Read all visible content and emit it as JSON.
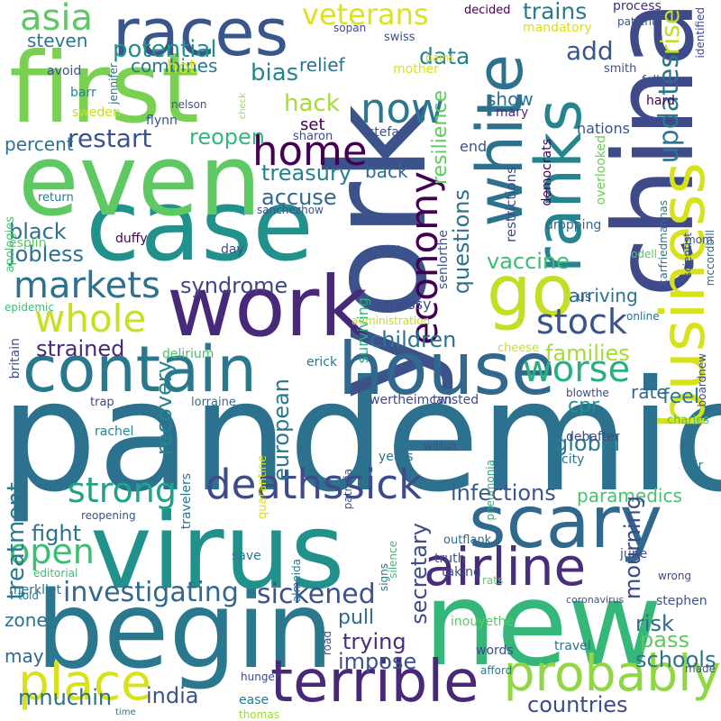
{
  "palette": {
    "dark_purple": "#440154",
    "indigo": "#3b528b",
    "slate_blue": "#31688e",
    "teal": "#21918c",
    "sea_green": "#2ca87f",
    "green": "#5ec962",
    "lime": "#a0da39",
    "yellow": "#d8e219"
  },
  "words": [
    {
      "text": "pandemic",
      "color": "#2c728e"
    },
    {
      "text": "york",
      "color": "#3b528b"
    },
    {
      "text": "china",
      "color": "#3e4a89"
    },
    {
      "text": "case",
      "color": "#21918c"
    },
    {
      "text": "even",
      "color": "#5ec962"
    },
    {
      "text": "first",
      "color": "#7ad151"
    },
    {
      "text": "new",
      "color": "#35b779"
    },
    {
      "text": "begin",
      "color": "#2a788e"
    },
    {
      "text": "virus",
      "color": "#21918c"
    },
    {
      "text": "work",
      "color": "#482878"
    },
    {
      "text": "house",
      "color": "#31688e"
    },
    {
      "text": "white",
      "color": "#2c728e"
    },
    {
      "text": "go",
      "color": "#c2df23"
    },
    {
      "text": "races",
      "color": "#39568c"
    },
    {
      "text": "business",
      "color": "#d8e219"
    },
    {
      "text": "ranks",
      "color": "#25858e"
    },
    {
      "text": "contain",
      "color": "#2a788e"
    },
    {
      "text": "scary",
      "color": "#31688e"
    },
    {
      "text": "airline",
      "color": "#472d7b"
    },
    {
      "text": "terrible",
      "color": "#482878"
    },
    {
      "text": "probably",
      "color": "#90d743"
    },
    {
      "text": "place",
      "color": "#d8e219"
    },
    {
      "text": "deathssick",
      "color": "#3e4a89"
    },
    {
      "text": "home",
      "color": "#440154"
    },
    {
      "text": "economy",
      "color": "#440154"
    },
    {
      "text": "now",
      "color": "#2a788e"
    },
    {
      "text": "worse",
      "color": "#2ab07f"
    },
    {
      "text": "whole",
      "color": "#c8e020"
    },
    {
      "text": "markets",
      "color": "#2c728e"
    },
    {
      "text": "strong",
      "color": "#20a386"
    },
    {
      "text": "investigating",
      "color": "#31688e"
    },
    {
      "text": "open",
      "color": "#3dbc74"
    },
    {
      "text": "sickened",
      "color": "#3b528b"
    },
    {
      "text": "stock",
      "color": "#3b528b"
    },
    {
      "text": "veterans",
      "color": "#dde318"
    },
    {
      "text": "asia",
      "color": "#5ec962"
    },
    {
      "text": "hack",
      "color": "#a5db36"
    },
    {
      "text": "data",
      "color": "#26828e"
    },
    {
      "text": "potential",
      "color": "#21918c"
    },
    {
      "text": "bias",
      "color": "#25858e"
    },
    {
      "text": "trains",
      "color": "#2a788e"
    },
    {
      "text": "add",
      "color": "#39568c"
    },
    {
      "text": "rise",
      "color": "#bddf26"
    },
    {
      "text": "updates",
      "color": "#2a788e"
    },
    {
      "text": "restart",
      "color": "#3b528b"
    },
    {
      "text": "reopen",
      "color": "#35b779"
    },
    {
      "text": "treasury",
      "color": "#26828e"
    },
    {
      "text": "accuse",
      "color": "#31688e"
    },
    {
      "text": "black",
      "color": "#2c728e"
    },
    {
      "text": "jobless",
      "color": "#2c728e"
    },
    {
      "text": "syndrome",
      "color": "#414487"
    },
    {
      "text": "vaccine",
      "color": "#3dbc74"
    },
    {
      "text": "questions",
      "color": "#2c728e"
    },
    {
      "text": "children",
      "color": "#2c728e"
    },
    {
      "text": "families",
      "color": "#a5db36"
    },
    {
      "text": "global",
      "color": "#2a788e"
    },
    {
      "text": "infections",
      "color": "#39568c"
    },
    {
      "text": "paramedics",
      "color": "#4ac16d"
    },
    {
      "text": "treatment",
      "color": "#2a788e"
    },
    {
      "text": "recovery",
      "color": "#25858e"
    },
    {
      "text": "european",
      "color": "#2a788e"
    },
    {
      "text": "strained",
      "color": "#482878"
    },
    {
      "text": "india",
      "color": "#3b528b"
    },
    {
      "text": "mnuchin",
      "color": "#2c728e"
    },
    {
      "text": "secretary",
      "color": "#3e4a89"
    },
    {
      "text": "trying",
      "color": "#472d7b"
    },
    {
      "text": "impose",
      "color": "#3b528b"
    },
    {
      "text": "mourning",
      "color": "#3e4a89"
    },
    {
      "text": "risk",
      "color": "#31688e"
    },
    {
      "text": "pass",
      "color": "#5ec962"
    },
    {
      "text": "schools",
      "color": "#2c728e"
    },
    {
      "text": "countries",
      "color": "#3e4a89"
    },
    {
      "text": "fight",
      "color": "#2c728e"
    },
    {
      "text": "zone",
      "color": "#2c728e"
    },
    {
      "text": "may",
      "color": "#31688e"
    },
    {
      "text": "pull",
      "color": "#31688e"
    },
    {
      "text": "feel",
      "color": "#2a788e"
    },
    {
      "text": "cpr",
      "color": "#21918c"
    },
    {
      "text": "rate",
      "color": "#31688e"
    },
    {
      "text": "show",
      "color": "#2c728e"
    },
    {
      "text": "resilience",
      "color": "#5ec962"
    },
    {
      "text": "steven",
      "color": "#2a788e"
    },
    {
      "text": "combines",
      "color": "#2a788e"
    },
    {
      "text": "hot",
      "color": "#d8e219"
    },
    {
      "text": "relief",
      "color": "#2c728e"
    },
    {
      "text": "set",
      "color": "#440154"
    },
    {
      "text": "back",
      "color": "#31688e"
    },
    {
      "text": "percent",
      "color": "#2c728e"
    },
    {
      "text": "surviving",
      "color": "#2ab07f"
    },
    {
      "text": "messy",
      "color": "#3e4a89"
    },
    {
      "text": "end",
      "color": "#3b528b"
    },
    {
      "text": "arriving",
      "color": "#2c728e"
    },
    {
      "text": "dropping",
      "color": "#31688e"
    },
    {
      "text": "restrictions",
      "color": "#3e4a89"
    },
    {
      "text": "nations",
      "color": "#3b528b"
    },
    {
      "text": "democrats",
      "color": "#440154"
    },
    {
      "text": "overlooked",
      "color": "#6ece58"
    },
    {
      "text": "mandatory",
      "color": "#d8e219"
    },
    {
      "text": "process",
      "color": "#472d7b"
    },
    {
      "text": "decided",
      "color": "#440154"
    },
    {
      "text": "patients",
      "color": "#3b528b"
    },
    {
      "text": "pains",
      "color": "#dde318"
    },
    {
      "text": "swiss",
      "color": "#3b528b"
    },
    {
      "text": "sopan",
      "color": "#3e4a89"
    },
    {
      "text": "avoid",
      "color": "#3b528b"
    },
    {
      "text": "jennifer",
      "color": "#2c728e"
    },
    {
      "text": "barr",
      "color": "#25858e"
    },
    {
      "text": "sweden",
      "color": "#c2df23"
    },
    {
      "text": "nelson",
      "color": "#3b528b"
    },
    {
      "text": "flynn",
      "color": "#3b528b"
    },
    {
      "text": "check",
      "color": "#a0da39"
    },
    {
      "text": "mother",
      "color": "#d8e219"
    },
    {
      "text": "smith",
      "color": "#3b528b"
    },
    {
      "text": "follow",
      "color": "#3b528b"
    },
    {
      "text": "identified",
      "color": "#3e4a89"
    },
    {
      "text": "hard",
      "color": "#440154"
    },
    {
      "text": "mary",
      "color": "#472d7b"
    },
    {
      "text": "sharon",
      "color": "#3e4a89"
    },
    {
      "text": "stefan",
      "color": "#3b528b"
    },
    {
      "text": "apologies",
      "color": "#4ac16d"
    },
    {
      "text": "return",
      "color": "#2a788e"
    },
    {
      "text": "sanchezhow",
      "color": "#3b528b"
    },
    {
      "text": "senlorthe",
      "color": "#3b528b"
    },
    {
      "text": "carfriedmanhas",
      "color": "#2c728e"
    },
    {
      "text": "duffy",
      "color": "#440154"
    },
    {
      "text": "esplin",
      "color": "#5ec962"
    },
    {
      "text": "day",
      "color": "#3e4a89"
    },
    {
      "text": "call",
      "color": "#3b528b"
    },
    {
      "text": "odell",
      "color": "#5ec962"
    },
    {
      "text": "mom",
      "color": "#3b528b"
    },
    {
      "text": "scientist",
      "color": "#3b528b"
    },
    {
      "text": "mccordbill",
      "color": "#31688e"
    },
    {
      "text": "epidemic",
      "color": "#3dbc74"
    },
    {
      "text": "administration",
      "color": "#c2df23"
    },
    {
      "text": "us",
      "color": "#3b528b"
    },
    {
      "text": "online",
      "color": "#2c728e"
    },
    {
      "text": "delirium",
      "color": "#4ac16d"
    },
    {
      "text": "cheese",
      "color": "#c8e020"
    },
    {
      "text": "britain",
      "color": "#3b528b"
    },
    {
      "text": "erick",
      "color": "#2a788e"
    },
    {
      "text": "boardnew",
      "color": "#3e4a89"
    },
    {
      "text": "blowthe",
      "color": "#3e4a89"
    },
    {
      "text": "trap",
      "color": "#3e4a89"
    },
    {
      "text": "lorraine",
      "color": "#2c728e"
    },
    {
      "text": "wertheimcan",
      "color": "#3e4a89"
    },
    {
      "text": "twisted",
      "color": "#3e4a89"
    },
    {
      "text": "charles",
      "color": "#4ac16d"
    },
    {
      "text": "rachel",
      "color": "#25858e"
    },
    {
      "text": "quarantine",
      "color": "#d8e219"
    },
    {
      "text": "patricia",
      "color": "#3b528b"
    },
    {
      "text": "pneumonia",
      "color": "#2ab07f"
    },
    {
      "text": "debafter",
      "color": "#3e4a89"
    },
    {
      "text": "years",
      "color": "#2c728e"
    },
    {
      "text": "within",
      "color": "#3b528b"
    },
    {
      "text": "city",
      "color": "#2c728e"
    },
    {
      "text": "air",
      "color": "#2a788e"
    },
    {
      "text": "travelers",
      "color": "#2c728e"
    },
    {
      "text": "reopening",
      "color": "#3b528b"
    },
    {
      "text": "truth",
      "color": "#3b528b"
    },
    {
      "text": "outflank",
      "color": "#31688e"
    },
    {
      "text": "taking",
      "color": "#3e4a89"
    },
    {
      "text": "save",
      "color": "#2a788e"
    },
    {
      "text": "almeida",
      "color": "#2a788e"
    },
    {
      "text": "signs",
      "color": "#2a788e"
    },
    {
      "text": "silence",
      "color": "#3dbc74"
    },
    {
      "text": "june",
      "color": "#3b528b"
    },
    {
      "text": "editorial",
      "color": "#3dbc74"
    },
    {
      "text": "wrong",
      "color": "#3e4a89"
    },
    {
      "text": "merkllet",
      "color": "#2c728e"
    },
    {
      "text": "told",
      "color": "#2a788e"
    },
    {
      "text": "inouyethe",
      "color": "#5ec962"
    },
    {
      "text": "rats",
      "color": "#5ec962"
    },
    {
      "text": "coronavirus",
      "color": "#3b528b"
    },
    {
      "text": "stephen",
      "color": "#3b528b"
    },
    {
      "text": "words",
      "color": "#3e4a89"
    },
    {
      "text": "road",
      "color": "#3b528b"
    },
    {
      "text": "afford",
      "color": "#2a788e"
    },
    {
      "text": "travel",
      "color": "#2c728e"
    },
    {
      "text": "hunger",
      "color": "#3e4a89"
    },
    {
      "text": "ease",
      "color": "#2a788e"
    },
    {
      "text": "thomas",
      "color": "#a0da39"
    },
    {
      "text": "time",
      "color": "#2c728e"
    },
    {
      "text": "made",
      "color": "#3b528b"
    }
  ]
}
